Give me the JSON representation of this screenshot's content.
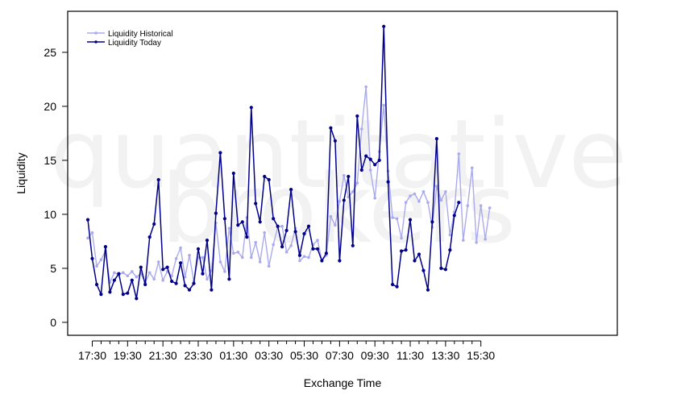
{
  "watermark": {
    "line1": "quantitative",
    "line2": "brokers"
  },
  "chart_data": {
    "type": "line",
    "xlabel": "Exchange Time",
    "ylabel": "Liquidity",
    "ylim": [
      -1.2,
      28.8
    ],
    "yticks": [
      0,
      5,
      10,
      15,
      20,
      25
    ],
    "xticks": [
      {
        "label": "17:30",
        "index": 1
      },
      {
        "label": "19:30",
        "index": 9
      },
      {
        "label": "21:30",
        "index": 17
      },
      {
        "label": "23:30",
        "index": 25
      },
      {
        "label": "01:30",
        "index": 33
      },
      {
        "label": "03:30",
        "index": 41
      },
      {
        "label": "05:30",
        "index": 49
      },
      {
        "label": "07:30",
        "index": 57
      },
      {
        "label": "09:30",
        "index": 65
      },
      {
        "label": "11:30",
        "index": 73
      },
      {
        "label": "13:30",
        "index": 81
      },
      {
        "label": "15:30",
        "index": 89
      }
    ],
    "legend_position": "top-left",
    "series": [
      {
        "name": "Liquidity Historical",
        "color": "#aaaaee",
        "values": [
          7.8,
          8.3,
          5.2,
          5.8,
          6.6,
          3.7,
          4.6,
          4.4,
          4.6,
          4.3,
          4.7,
          4.2,
          4.5,
          3.7,
          4.6,
          4.0,
          5.6,
          3.9,
          4.7,
          4.3,
          5.9,
          6.9,
          4.2,
          6.2,
          3.8,
          6.0,
          6.0,
          4.0,
          4.8,
          9.2,
          5.6,
          4.7,
          8.7,
          6.4,
          6.5,
          6.0,
          9.7,
          6.0,
          7.4,
          5.6,
          8.3,
          5.2,
          7.2,
          8.8,
          8.9,
          6.5,
          7.1,
          8.7,
          5.7,
          6.1,
          6.0,
          7.2,
          7.6,
          5.7,
          6.2,
          9.8,
          9.0,
          11.2,
          13.6,
          11.6,
          12.1,
          12.9,
          17.9,
          21.8,
          14.1,
          11.5,
          15.8,
          20.1,
          14.0,
          9.7,
          9.6,
          7.8,
          11.1,
          11.7,
          11.9,
          11.2,
          12.1,
          11.1,
          8.8,
          12.6,
          11.3,
          12.1,
          8.1,
          10.2,
          15.6,
          7.6,
          10.8,
          14.3,
          7.4,
          10.8,
          7.7,
          10.6
        ]
      },
      {
        "name": "Liquidity Today",
        "color": "#000088",
        "values": [
          9.5,
          5.9,
          3.5,
          2.6,
          7.0,
          2.8,
          3.9,
          4.5,
          2.6,
          2.7,
          3.9,
          2.2,
          5.1,
          3.5,
          7.9,
          9.1,
          13.2,
          4.9,
          5.1,
          3.8,
          3.6,
          5.5,
          3.4,
          3.0,
          3.6,
          6.8,
          4.5,
          7.6,
          3.0,
          10.1,
          15.7,
          9.6,
          4.0,
          13.8,
          9.0,
          9.3,
          7.9,
          19.9,
          11.0,
          9.3,
          13.5,
          13.2,
          9.6,
          8.9,
          7.0,
          8.5,
          12.3,
          8.4,
          6.2,
          8.2,
          8.9,
          6.8,
          6.8,
          5.7,
          6.4,
          18.0,
          16.8,
          5.7,
          11.3,
          13.5,
          7.1,
          19.1,
          14.1,
          15.4,
          15.1,
          14.6,
          15.0,
          27.4,
          13.0,
          3.5,
          3.3,
          6.6,
          6.7,
          9.5,
          5.7,
          6.3,
          4.8,
          3.0,
          9.3,
          17.0,
          5.0,
          4.9,
          6.7,
          9.9,
          11.1
        ]
      }
    ]
  }
}
